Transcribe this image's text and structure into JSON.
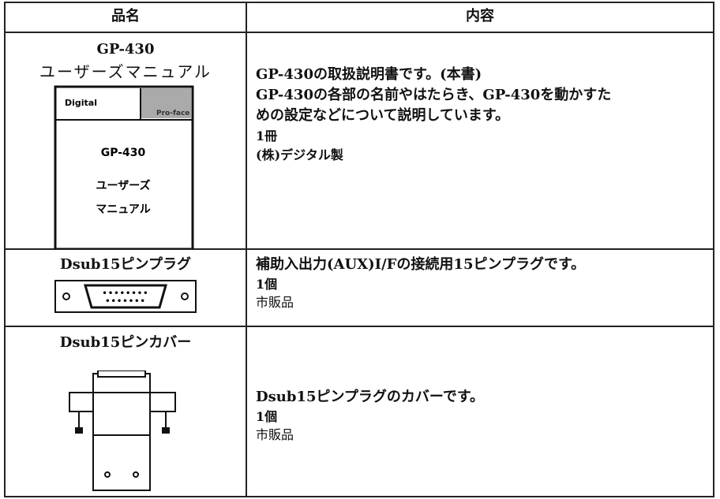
{
  "table": {
    "header": [
      "品名",
      "内容"
    ],
    "rows": [
      {
        "name": [
          "GP-430",
          "ユーザーズマニュアル"
        ],
        "image": [
          "Digital",
          "Pro-face",
          "GP-430",
          "ユーザーズ",
          "マニュアル"
        ],
        "content": [
          "GP-430の取扱説明書です。(本書)",
          "GP-430の各部の名前やはたらき、GP-430を動かすた",
          "めの設定などについて説明しています。",
          "1冊",
          "(株)デジタル製"
        ]
      },
      {
        "name": [
          "Dsub15ピンプラグ"
        ],
        "content": [
          "補助入出力(AUX)I/Fの接続用15ピンプラグです。",
          "1個",
          "市販品"
        ]
      },
      {
        "name": [
          "Dsub15ピンカバー"
        ],
        "content": [
          "Dsub15ピンプラグのカバーです。",
          "1個",
          "市販品"
        ]
      }
    ]
  }
}
